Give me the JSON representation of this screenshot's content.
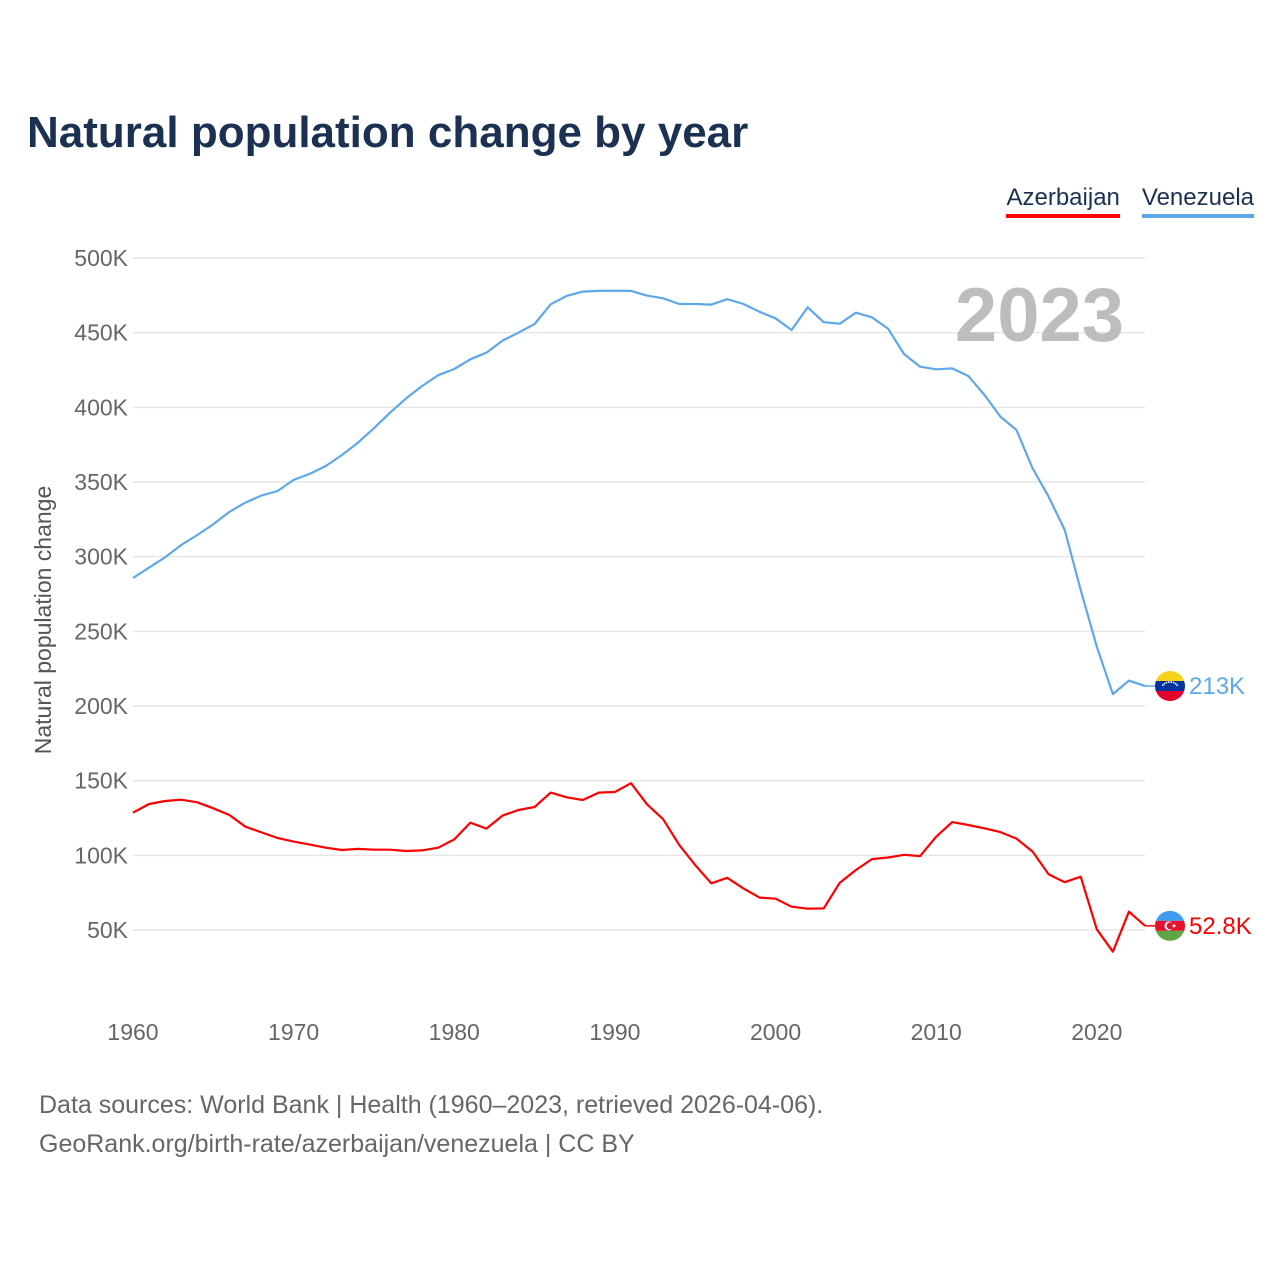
{
  "title": "Natural population change by year",
  "footer": {
    "line1": "Data sources: World Bank | Health (1960–2023, retrieved 2026-04-06).",
    "line2": "GeoRank.org/birth-rate/azerbaijan/venezuela | CC BY"
  },
  "chart_data": {
    "type": "line",
    "title": "Natural population change by year",
    "xlabel": "",
    "ylabel": "Natural population change",
    "year_label": "2023",
    "xlim": [
      1960,
      2023
    ],
    "ylim": [
      0,
      500000
    ],
    "grid": true,
    "legend_position": "top-right",
    "x_ticks": [
      {
        "v": 1960,
        "label": "1960"
      },
      {
        "v": 1970,
        "label": "1970"
      },
      {
        "v": 1980,
        "label": "1980"
      },
      {
        "v": 1990,
        "label": "1990"
      },
      {
        "v": 2000,
        "label": "2000"
      },
      {
        "v": 2010,
        "label": "2010"
      },
      {
        "v": 2020,
        "label": "2020"
      }
    ],
    "y_ticks": [
      {
        "v": 50000,
        "label": "50K"
      },
      {
        "v": 100000,
        "label": "100K"
      },
      {
        "v": 150000,
        "label": "150K"
      },
      {
        "v": 200000,
        "label": "200K"
      },
      {
        "v": 250000,
        "label": "250K"
      },
      {
        "v": 300000,
        "label": "300K"
      },
      {
        "v": 350000,
        "label": "350K"
      },
      {
        "v": 400000,
        "label": "400K"
      },
      {
        "v": 450000,
        "label": "450K"
      },
      {
        "v": 500000,
        "label": "500K"
      }
    ],
    "x_start": 1960,
    "series": [
      {
        "name": "Azerbaijan",
        "color": "#ff0000",
        "end_label": "52.8K",
        "flag": "azerbaijan-flag",
        "values": [
          128600,
          134400,
          136400,
          137300,
          135500,
          131500,
          127000,
          119200,
          115400,
          111600,
          109200,
          107200,
          105100,
          103600,
          104300,
          103800,
          103800,
          102900,
          103300,
          105100,
          110700,
          121900,
          117900,
          126600,
          130400,
          132400,
          142000,
          138900,
          137100,
          142000,
          142400,
          148300,
          134200,
          124200,
          107000,
          93500,
          81300,
          85000,
          77900,
          71700,
          71000,
          65600,
          64300,
          64500,
          81700,
          90200,
          97500,
          98600,
          100400,
          99500,
          112500,
          122300,
          120300,
          118100,
          115600,
          111200,
          102500,
          87300,
          82000,
          85700,
          50500,
          35500,
          62300,
          52800
        ]
      },
      {
        "name": "Venezuela",
        "color": "#5ea8ea",
        "end_label": "213K",
        "flag": "venezuela-flag",
        "values": [
          285700,
          292700,
          299600,
          307800,
          314500,
          321700,
          330000,
          336200,
          341000,
          344000,
          351400,
          355400,
          360700,
          368000,
          376300,
          386000,
          396400,
          406000,
          414300,
          421500,
          425700,
          432200,
          436600,
          444700,
          450000,
          455800,
          469000,
          474600,
          477500,
          478000,
          478100,
          478000,
          474800,
          473000,
          469200,
          469200,
          468800,
          472400,
          469200,
          464000,
          459600,
          451800,
          467000,
          457000,
          456000,
          463400,
          460300,
          452700,
          435700,
          427200,
          425500,
          426100,
          421000,
          408300,
          393800,
          384800,
          359200,
          340200,
          317900,
          277700,
          239700,
          208000,
          217000,
          213400
        ]
      }
    ]
  }
}
